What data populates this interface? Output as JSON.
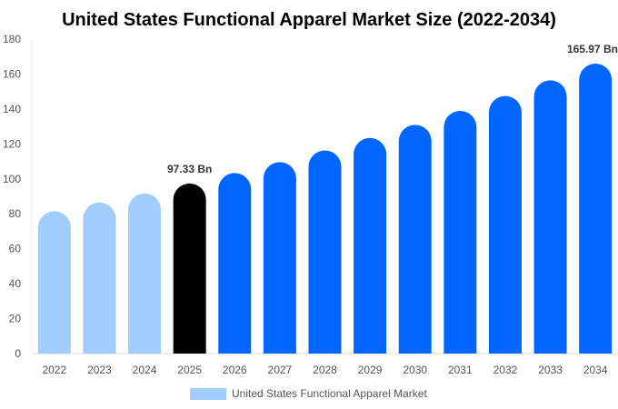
{
  "chart_data": {
    "type": "bar",
    "title": "United States Functional Apparel Market Size (2022-2034)",
    "xlabel": "",
    "ylabel": "",
    "categories": [
      "2022",
      "2023",
      "2024",
      "2025",
      "2026",
      "2027",
      "2028",
      "2029",
      "2030",
      "2031",
      "2032",
      "2033",
      "2034"
    ],
    "series": [
      {
        "name": "United States Functional Apparel Market",
        "values": [
          81.5,
          86.5,
          91.7,
          97.33,
          103.3,
          109.6,
          116.3,
          123.4,
          130.9,
          138.9,
          147.4,
          156.4,
          165.97
        ]
      }
    ],
    "data_labels": [
      {
        "category": "2025",
        "text": "97.33 Bn"
      },
      {
        "category": "2034",
        "text": "165.97 Bn"
      }
    ],
    "ylim": [
      0,
      180
    ],
    "yticks": [
      0,
      20,
      40,
      60,
      80,
      100,
      120,
      140,
      160,
      180
    ],
    "grid": false,
    "legend_placement": "bottom",
    "colors": {
      "historical": "#a0cdfc",
      "current": "#000000",
      "forecast": "#0066ff",
      "legend_swatch": "#a0cdfc"
    }
  }
}
